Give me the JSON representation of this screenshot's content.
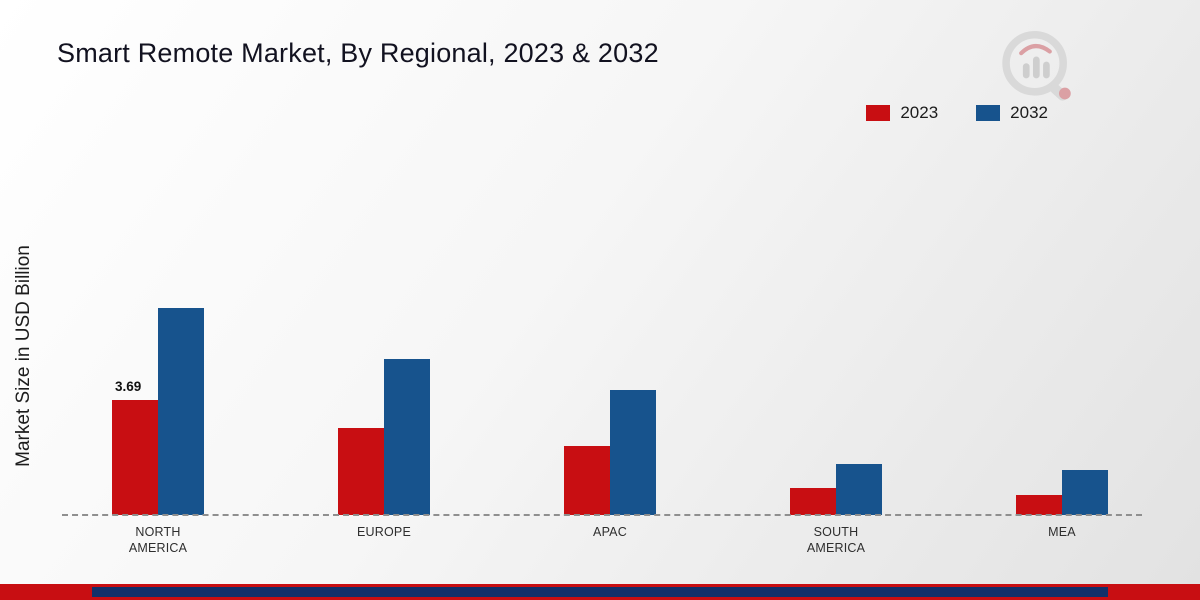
{
  "title": "Smart Remote Market, By Regional, 2023 & 2032",
  "legend": [
    {
      "label": "2023",
      "color": "#c80e12"
    },
    {
      "label": "2032",
      "color": "#17538d"
    }
  ],
  "chart_data": {
    "type": "bar",
    "title": "Smart Remote Market, By Regional, 2023 & 2032",
    "ylabel": "Market Size in USD Billion",
    "xlabel": "",
    "categories": [
      "NORTH AMERICA",
      "EUROPE",
      "APAC",
      "SOUTH AMERICA",
      "MEA"
    ],
    "series": [
      {
        "name": "2023",
        "color": "#c80e12",
        "values": [
          3.69,
          2.8,
          2.2,
          0.85,
          0.65
        ],
        "data_labels": [
          "3.69",
          "",
          "",
          "",
          ""
        ]
      },
      {
        "name": "2032",
        "color": "#17538d",
        "values": [
          6.65,
          5.0,
          4.0,
          1.65,
          1.45
        ],
        "data_labels": [
          "",
          "",
          "",
          "",
          ""
        ]
      }
    ],
    "ylim": [
      0,
      11.7
    ],
    "grid": false,
    "baseline_style": "dashed",
    "legend_position": "top-right"
  },
  "footer": {
    "red_color": "#c80e12",
    "navy_color": "#13306a"
  },
  "logo": {
    "name": "brand-watermark-logo"
  }
}
